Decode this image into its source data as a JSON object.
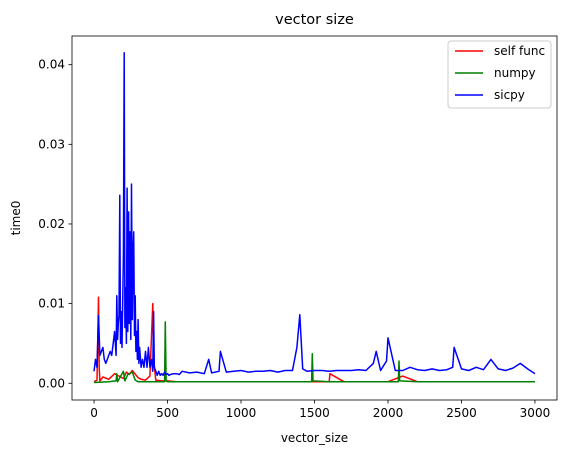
{
  "chart_data": {
    "type": "line",
    "title": "vector size",
    "xlabel": "vector_size",
    "ylabel": "time0",
    "xlim": [
      -150,
      3150
    ],
    "ylim": [
      -0.0021,
      0.0436
    ],
    "x_ticks": [
      0,
      500,
      1000,
      1500,
      2000,
      2500,
      3000
    ],
    "x_tick_labels": [
      "0",
      "500",
      "1000",
      "1500",
      "2000",
      "2500",
      "3000"
    ],
    "y_ticks": [
      0.0,
      0.01,
      0.02,
      0.03,
      0.04
    ],
    "y_tick_labels": [
      "0.00",
      "0.01",
      "0.02",
      "0.03",
      "0.04"
    ],
    "grid": false,
    "legend_position": "top-right",
    "colors": {
      "self_func": "#ff0000",
      "numpy": "#008000",
      "sicpy": "#0000ff"
    },
    "series": [
      {
        "name": "self func",
        "color": "#ff0000",
        "x": [
          0,
          20,
          30,
          35,
          40,
          60,
          100,
          140,
          170,
          200,
          220,
          240,
          260,
          300,
          320,
          350,
          380,
          400,
          405,
          420,
          460,
          500,
          560,
          650,
          800,
          1000,
          1200,
          1450,
          1550,
          1600,
          1605,
          1700,
          1800,
          2000,
          2100,
          2200,
          2400,
          2600,
          2800,
          3000
        ],
        "y": [
          0.0002,
          0.0004,
          0.0108,
          0.002,
          0.0003,
          0.0008,
          0.0005,
          0.0012,
          0.0009,
          0.0006,
          0.0014,
          0.0011,
          0.0016,
          0.0007,
          0.0005,
          0.0004,
          0.0009,
          0.01,
          0.003,
          0.0004,
          0.0003,
          0.0003,
          0.0002,
          0.0002,
          0.0002,
          0.0002,
          0.0002,
          0.0002,
          0.0002,
          0.0002,
          0.0012,
          0.0002,
          0.0002,
          0.0002,
          0.0009,
          0.0002,
          0.0002,
          0.0002,
          0.0002,
          0.0002
        ]
      },
      {
        "name": "numpy",
        "color": "#008000",
        "x": [
          0,
          100,
          150,
          155,
          160,
          200,
          210,
          230,
          260,
          280,
          300,
          400,
          480,
          485,
          490,
          500,
          600,
          800,
          1000,
          1200,
          1300,
          1480,
          1485,
          1490,
          1600,
          1800,
          2000,
          2070,
          2075,
          2080,
          2200,
          2400,
          2600,
          2800,
          3000
        ],
        "y": [
          0.0001,
          0.0002,
          0.0003,
          0.0012,
          0.0002,
          0.0015,
          0.0003,
          0.0011,
          0.0014,
          0.0004,
          0.0002,
          0.0002,
          0.0002,
          0.0077,
          0.0003,
          0.0002,
          0.0002,
          0.0002,
          0.0002,
          0.0002,
          0.0002,
          0.0002,
          0.0037,
          0.0003,
          0.0002,
          0.0002,
          0.0002,
          0.0002,
          0.0028,
          0.0003,
          0.0002,
          0.0002,
          0.0002,
          0.0002,
          0.0002
        ]
      },
      {
        "name": "sicpy",
        "color": "#0000ff",
        "x": [
          0,
          10,
          20,
          30,
          35,
          40,
          50,
          60,
          70,
          80,
          90,
          100,
          110,
          120,
          130,
          140,
          150,
          155,
          160,
          165,
          170,
          175,
          180,
          185,
          190,
          195,
          200,
          205,
          210,
          215,
          220,
          225,
          230,
          235,
          240,
          245,
          250,
          255,
          260,
          265,
          270,
          275,
          280,
          285,
          290,
          295,
          300,
          305,
          310,
          320,
          330,
          340,
          350,
          360,
          370,
          380,
          390,
          400,
          405,
          410,
          420,
          430,
          440,
          450,
          460,
          470,
          480,
          490,
          500,
          510,
          520,
          540,
          560,
          580,
          600,
          650,
          700,
          750,
          780,
          800,
          850,
          860,
          900,
          950,
          1000,
          1050,
          1100,
          1150,
          1200,
          1250,
          1300,
          1350,
          1380,
          1400,
          1420,
          1450,
          1500,
          1550,
          1600,
          1650,
          1700,
          1750,
          1800,
          1850,
          1900,
          1920,
          1950,
          1990,
          2000,
          2050,
          2100,
          2150,
          2200,
          2250,
          2300,
          2350,
          2400,
          2440,
          2450,
          2500,
          2550,
          2600,
          2650,
          2700,
          2750,
          2800,
          2850,
          2900,
          2950,
          3000
        ],
        "y": [
          0.0015,
          0.003,
          0.002,
          0.0085,
          0.006,
          0.0035,
          0.004,
          0.0045,
          0.003,
          0.0025,
          0.003,
          0.0035,
          0.004,
          0.0035,
          0.005,
          0.0065,
          0.0035,
          0.011,
          0.0055,
          0.0075,
          0.0085,
          0.0236,
          0.005,
          0.009,
          0.0045,
          0.01,
          0.016,
          0.0415,
          0.007,
          0.012,
          0.005,
          0.0245,
          0.0065,
          0.0215,
          0.0075,
          0.019,
          0.0055,
          0.025,
          0.008,
          0.016,
          0.019,
          0.006,
          0.011,
          0.004,
          0.0065,
          0.003,
          0.008,
          0.0025,
          0.0045,
          0.002,
          0.003,
          0.002,
          0.004,
          0.002,
          0.0045,
          0.002,
          0.003,
          0.0015,
          0.009,
          0.002,
          0.0015,
          0.001,
          0.0015,
          0.001,
          0.0012,
          0.001,
          0.0014,
          0.0011,
          0.0012,
          0.001,
          0.0011,
          0.0012,
          0.0012,
          0.0011,
          0.0015,
          0.0013,
          0.0014,
          0.0012,
          0.003,
          0.0013,
          0.0015,
          0.004,
          0.0014,
          0.0015,
          0.0016,
          0.0014,
          0.0015,
          0.0015,
          0.0016,
          0.0014,
          0.0016,
          0.0016,
          0.0045,
          0.0086,
          0.0018,
          0.0015,
          0.0016,
          0.0016,
          0.0015,
          0.0016,
          0.0016,
          0.0016,
          0.0017,
          0.0016,
          0.0025,
          0.004,
          0.0016,
          0.0028,
          0.0057,
          0.0016,
          0.0016,
          0.002,
          0.0017,
          0.0016,
          0.0018,
          0.0016,
          0.0017,
          0.002,
          0.0045,
          0.0018,
          0.0016,
          0.002,
          0.0017,
          0.003,
          0.0018,
          0.0016,
          0.0019,
          0.0025,
          0.0018,
          0.0012
        ]
      }
    ]
  }
}
